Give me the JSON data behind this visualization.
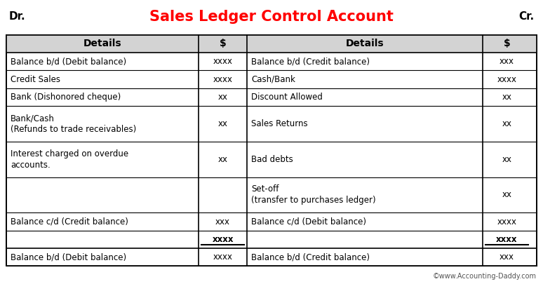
{
  "title": "Sales Ledger Control Account",
  "dr_label": "Dr.",
  "cr_label": "Cr.",
  "title_color": "#FF0000",
  "header_bg": "#D3D3D3",
  "header_text_color": "#000000",
  "table_bg": "#FFFFFF",
  "border_color": "#000000",
  "text_color": "#000000",
  "watermark": "©www.Accounting-Daddy.com",
  "col_headers": [
    "Details",
    "$",
    "Details",
    "$"
  ],
  "rows": [
    {
      "left_detail": "Balance b/d (Debit balance)",
      "left_amount": "xxxx",
      "right_detail": "Balance b/d (Credit balance)",
      "right_amount": "xxx",
      "left_multi": false,
      "right_multi": false,
      "totals_row": false
    },
    {
      "left_detail": "Credit Sales",
      "left_amount": "xxxx",
      "right_detail": "Cash/Bank",
      "right_amount": "xxxx",
      "left_multi": false,
      "right_multi": false,
      "totals_row": false
    },
    {
      "left_detail": "Bank (Dishonored cheque)",
      "left_amount": "xx",
      "right_detail": "Discount Allowed",
      "right_amount": "xx",
      "left_multi": false,
      "right_multi": false,
      "totals_row": false
    },
    {
      "left_detail": "Bank/Cash\n(Refunds to trade receivables)",
      "left_amount": "xx",
      "right_detail": "Sales Returns",
      "right_amount": "xx",
      "left_multi": true,
      "right_multi": false,
      "totals_row": false
    },
    {
      "left_detail": "Interest charged on overdue\naccounts.",
      "left_amount": "xx",
      "right_detail": "Bad debts",
      "right_amount": "xx",
      "left_multi": true,
      "right_multi": false,
      "totals_row": false
    },
    {
      "left_detail": "",
      "left_amount": "",
      "right_detail": "Set-off\n(transfer to purchases ledger)",
      "right_amount": "xx",
      "left_multi": false,
      "right_multi": true,
      "totals_row": false
    },
    {
      "left_detail": "Balance c/d (Credit balance)",
      "left_amount": "xxx",
      "right_detail": "Balance c/d (Debit balance)",
      "right_amount": "xxxx",
      "left_multi": false,
      "right_multi": false,
      "totals_row": false
    },
    {
      "left_detail": "",
      "left_amount": "xxxx",
      "right_detail": "",
      "right_amount": "xxxx",
      "left_multi": false,
      "right_multi": false,
      "totals_row": true
    },
    {
      "left_detail": "Balance b/d (Debit balance)",
      "left_amount": "xxxx",
      "right_detail": "Balance b/d (Credit balance)",
      "right_amount": "xxx",
      "left_multi": false,
      "right_multi": false,
      "totals_row": false
    }
  ]
}
